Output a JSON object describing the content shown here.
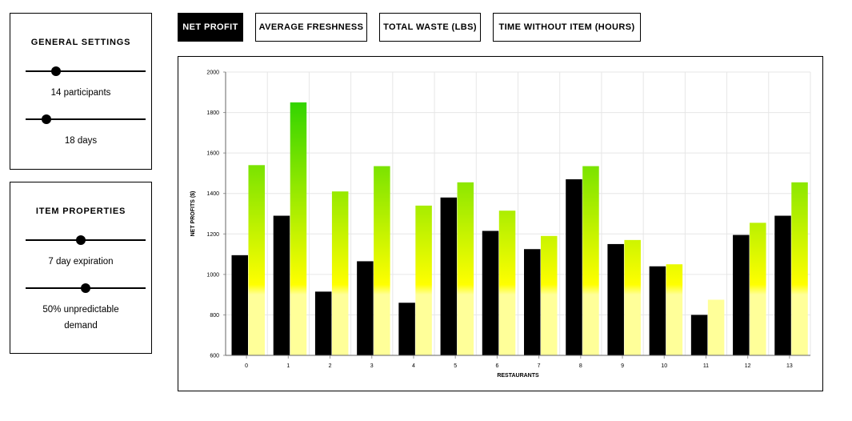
{
  "general_settings": {
    "title": "GENERAL SETTINGS",
    "participants": {
      "label": "14 participants",
      "value": 14,
      "min": 2,
      "max": 50
    },
    "days": {
      "label": "18 days",
      "value": 18,
      "min": 1,
      "max": 100
    }
  },
  "item_properties": {
    "title": "ITEM PROPERTIES",
    "expiration": {
      "label": "7 day expiration",
      "value": 7,
      "min": 1,
      "max": 14
    },
    "demand": {
      "label": "50% unpredictable demand",
      "value": 50,
      "min": 0,
      "max": 100
    }
  },
  "tabs": [
    {
      "label": "NET PROFIT",
      "active": true
    },
    {
      "label": "AVERAGE FRESHNESS",
      "active": false
    },
    {
      "label": "TOTAL WASTE (LBS)",
      "active": false
    },
    {
      "label": "TIME WITHOUT ITEM (HOURS)",
      "active": false
    }
  ],
  "chart_data": {
    "type": "bar",
    "title": "",
    "xlabel": "RESTAURANTS",
    "ylabel": "NET PROFITS ($)",
    "categories": [
      "0",
      "1",
      "2",
      "3",
      "4",
      "5",
      "6",
      "7",
      "8",
      "9",
      "10",
      "11",
      "12",
      "13"
    ],
    "ylim": [
      600,
      2000
    ],
    "yticks": [
      "600",
      "800",
      "1000",
      "1200",
      "1400",
      "1600",
      "1800",
      "2000"
    ],
    "grid": true,
    "series": [
      {
        "color": "#000000",
        "values": [
          1095,
          1290,
          915,
          1065,
          860,
          1380,
          1215,
          1125,
          1470,
          1150,
          1040,
          800,
          1195,
          1290
        ]
      },
      {
        "color": "#5ae000",
        "values": [
          1540,
          1850,
          1410,
          1535,
          1340,
          1455,
          1315,
          1190,
          1535,
          1170,
          1050,
          875,
          1255,
          1455
        ]
      }
    ],
    "gradient_colors": [
      "#33d400",
      "#ffff00",
      "#ffff99"
    ]
  }
}
